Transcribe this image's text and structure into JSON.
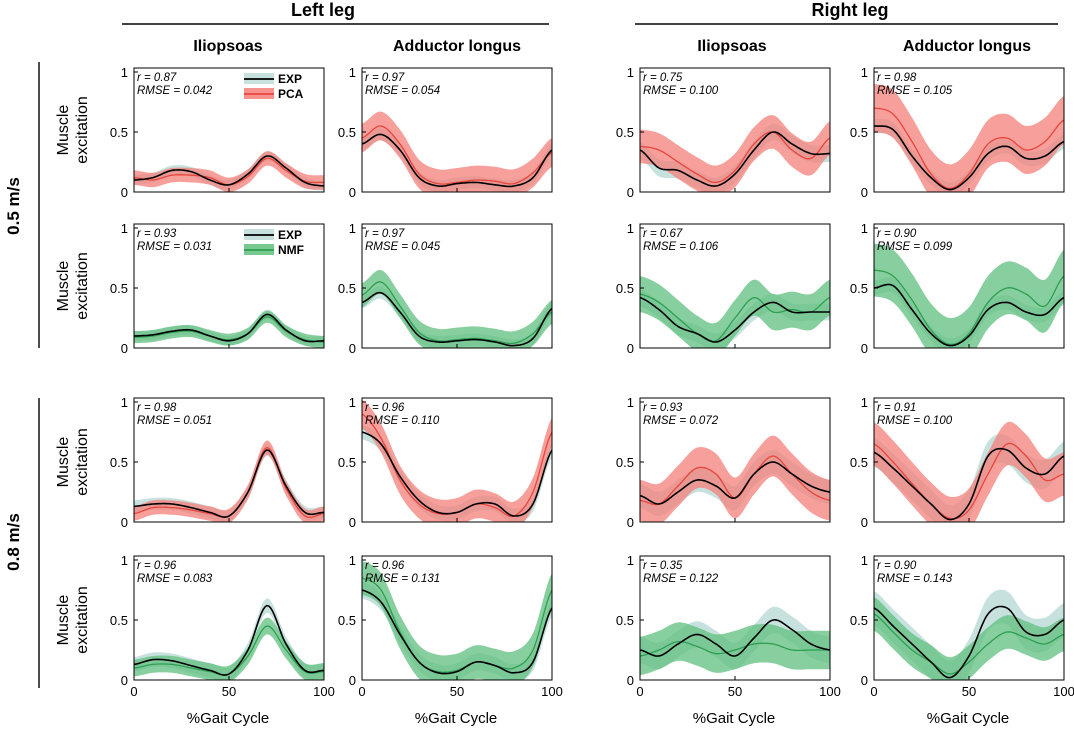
{
  "chart_data": {
    "type": "line",
    "groups": [
      "Left leg",
      "Right leg"
    ],
    "muscles": [
      "Iliopsoas",
      "Adductor longus"
    ],
    "speeds": [
      "0.5 m/s",
      "0.8 m/s"
    ],
    "ylabel": [
      "Muscle",
      "excitation"
    ],
    "xlabel": "%Gait Cycle",
    "xlim": [
      0,
      100
    ],
    "ylim": [
      0,
      1
    ],
    "xticks": [
      "0",
      "50",
      "100"
    ],
    "yticks": [
      "0",
      "0.5",
      "1"
    ],
    "legend_pca": [
      {
        "name": "EXP",
        "color": "#000000",
        "band": "#bcdcd8"
      },
      {
        "name": "PCA",
        "color": "#e8453c",
        "band": "#f47f7a"
      }
    ],
    "legend_nmf": [
      {
        "name": "EXP",
        "color": "#000000",
        "band": "#bcdcd8"
      },
      {
        "name": "NMF",
        "color": "#2e9e52",
        "band": "#5fbf7d"
      }
    ],
    "colors": {
      "exp_line": "#000000",
      "exp_band": "#bcdcd8",
      "pca_line": "#e8453c",
      "pca_band": "#f47f7a",
      "nmf_line": "#2e9e52",
      "nmf_band": "#5fbf7d"
    },
    "x": [
      0,
      10,
      20,
      30,
      40,
      50,
      60,
      70,
      80,
      90,
      100
    ],
    "panels": [
      {
        "row": 0,
        "col": 0,
        "method": "PCA",
        "r": "r = 0.87",
        "rmse": "RMSE = 0.042",
        "exp": [
          0.1,
          0.12,
          0.18,
          0.17,
          0.1,
          0.06,
          0.15,
          0.3,
          0.2,
          0.08,
          0.05
        ],
        "exp_sd": 0.04,
        "model": [
          0.12,
          0.1,
          0.14,
          0.14,
          0.12,
          0.06,
          0.13,
          0.28,
          0.18,
          0.09,
          0.08
        ],
        "model_sd": 0.06
      },
      {
        "row": 0,
        "col": 1,
        "method": "PCA",
        "r": "r = 0.97",
        "rmse": "RMSE = 0.054",
        "exp": [
          0.4,
          0.48,
          0.35,
          0.12,
          0.05,
          0.07,
          0.08,
          0.06,
          0.05,
          0.12,
          0.35
        ],
        "exp_sd": 0.05,
        "model": [
          0.45,
          0.55,
          0.4,
          0.15,
          0.07,
          0.08,
          0.1,
          0.09,
          0.07,
          0.16,
          0.33
        ],
        "model_sd": 0.12
      },
      {
        "row": 0,
        "col": 2,
        "method": "PCA",
        "r": "r = 0.75",
        "rmse": "RMSE = 0.100",
        "exp": [
          0.35,
          0.2,
          0.18,
          0.1,
          0.05,
          0.15,
          0.35,
          0.5,
          0.4,
          0.32,
          0.32
        ],
        "exp_sd": 0.07,
        "model": [
          0.38,
          0.35,
          0.25,
          0.15,
          0.08,
          0.18,
          0.4,
          0.5,
          0.35,
          0.28,
          0.45
        ],
        "model_sd": 0.14
      },
      {
        "row": 0,
        "col": 3,
        "method": "PCA",
        "r": "r = 0.98",
        "rmse": "RMSE = 0.105",
        "exp": [
          0.55,
          0.52,
          0.3,
          0.12,
          0.02,
          0.12,
          0.32,
          0.38,
          0.28,
          0.3,
          0.42
        ],
        "exp_sd": 0.06,
        "model": [
          0.7,
          0.65,
          0.42,
          0.15,
          0.03,
          0.15,
          0.4,
          0.45,
          0.35,
          0.42,
          0.6
        ],
        "model_sd": 0.2
      },
      {
        "row": 1,
        "col": 0,
        "method": "NMF",
        "r": "r = 0.93",
        "rmse": "RMSE = 0.031",
        "exp": [
          0.1,
          0.11,
          0.14,
          0.15,
          0.1,
          0.06,
          0.12,
          0.28,
          0.15,
          0.06,
          0.06
        ],
        "exp_sd": 0.04,
        "model": [
          0.09,
          0.1,
          0.13,
          0.14,
          0.1,
          0.07,
          0.12,
          0.26,
          0.14,
          0.07,
          0.05
        ],
        "model_sd": 0.05
      },
      {
        "row": 1,
        "col": 1,
        "method": "NMF",
        "r": "r = 0.97",
        "rmse": "RMSE = 0.045",
        "exp": [
          0.38,
          0.46,
          0.3,
          0.1,
          0.05,
          0.06,
          0.07,
          0.05,
          0.02,
          0.08,
          0.33
        ],
        "exp_sd": 0.05,
        "model": [
          0.44,
          0.55,
          0.35,
          0.13,
          0.06,
          0.07,
          0.08,
          0.06,
          0.04,
          0.12,
          0.3
        ],
        "model_sd": 0.1
      },
      {
        "row": 1,
        "col": 2,
        "method": "NMF",
        "r": "r = 0.67",
        "rmse": "RMSE = 0.106",
        "exp": [
          0.42,
          0.32,
          0.18,
          0.12,
          0.05,
          0.15,
          0.3,
          0.38,
          0.3,
          0.3,
          0.3
        ],
        "exp_sd": 0.07,
        "model": [
          0.45,
          0.38,
          0.25,
          0.12,
          0.06,
          0.25,
          0.42,
          0.3,
          0.32,
          0.3,
          0.42
        ],
        "model_sd": 0.15
      },
      {
        "row": 1,
        "col": 3,
        "method": "NMF",
        "r": "r = 0.90",
        "rmse": "RMSE = 0.099",
        "exp": [
          0.5,
          0.52,
          0.32,
          0.12,
          0.02,
          0.1,
          0.32,
          0.38,
          0.3,
          0.28,
          0.42
        ],
        "exp_sd": 0.06,
        "model": [
          0.65,
          0.6,
          0.4,
          0.15,
          0.03,
          0.12,
          0.38,
          0.5,
          0.45,
          0.35,
          0.6
        ],
        "model_sd": 0.22
      },
      {
        "row": 2,
        "col": 0,
        "method": "PCA",
        "r": "r = 0.98",
        "rmse": "RMSE = 0.051",
        "exp": [
          0.13,
          0.15,
          0.15,
          0.12,
          0.08,
          0.05,
          0.25,
          0.6,
          0.3,
          0.08,
          0.08
        ],
        "exp_sd": 0.05,
        "model": [
          0.07,
          0.12,
          0.12,
          0.1,
          0.07,
          0.05,
          0.25,
          0.62,
          0.28,
          0.05,
          0.07
        ],
        "model_sd": 0.06
      },
      {
        "row": 2,
        "col": 1,
        "method": "PCA",
        "r": "r = 0.96",
        "rmse": "RMSE = 0.110",
        "exp": [
          0.75,
          0.65,
          0.38,
          0.18,
          0.08,
          0.08,
          0.15,
          0.15,
          0.05,
          0.15,
          0.6
        ],
        "exp_sd": 0.06,
        "model": [
          0.9,
          0.7,
          0.35,
          0.15,
          0.07,
          0.08,
          0.15,
          0.12,
          0.05,
          0.25,
          0.75
        ],
        "model_sd": 0.12
      },
      {
        "row": 2,
        "col": 2,
        "method": "PCA",
        "r": "r = 0.93",
        "rmse": "RMSE = 0.072",
        "exp": [
          0.22,
          0.15,
          0.25,
          0.35,
          0.3,
          0.2,
          0.4,
          0.5,
          0.4,
          0.3,
          0.25
        ],
        "exp_sd": 0.1,
        "model": [
          0.18,
          0.15,
          0.3,
          0.45,
          0.4,
          0.2,
          0.4,
          0.55,
          0.4,
          0.25,
          0.18
        ],
        "model_sd": 0.17
      },
      {
        "row": 2,
        "col": 3,
        "method": "PCA",
        "r": "r = 0.91",
        "rmse": "RMSE = 0.100",
        "exp": [
          0.58,
          0.45,
          0.3,
          0.15,
          0.02,
          0.15,
          0.55,
          0.6,
          0.45,
          0.4,
          0.55
        ],
        "exp_sd": 0.12,
        "model": [
          0.65,
          0.5,
          0.32,
          0.15,
          0.03,
          0.1,
          0.4,
          0.65,
          0.55,
          0.35,
          0.4
        ],
        "model_sd": 0.18
      },
      {
        "row": 3,
        "col": 0,
        "method": "NMF",
        "r": "r = 0.96",
        "rmse": "RMSE = 0.083",
        "exp": [
          0.13,
          0.17,
          0.16,
          0.12,
          0.08,
          0.05,
          0.25,
          0.62,
          0.3,
          0.08,
          0.08
        ],
        "exp_sd": 0.06,
        "model": [
          0.1,
          0.13,
          0.13,
          0.1,
          0.07,
          0.05,
          0.2,
          0.45,
          0.25,
          0.07,
          0.07
        ],
        "model_sd": 0.07
      },
      {
        "row": 3,
        "col": 1,
        "method": "NMF",
        "r": "r = 0.96",
        "rmse": "RMSE = 0.131",
        "exp": [
          0.75,
          0.65,
          0.38,
          0.15,
          0.06,
          0.07,
          0.15,
          0.12,
          0.06,
          0.15,
          0.6
        ],
        "exp_sd": 0.07,
        "model": [
          0.85,
          0.75,
          0.4,
          0.15,
          0.07,
          0.08,
          0.15,
          0.12,
          0.1,
          0.25,
          0.75
        ],
        "model_sd": 0.14
      },
      {
        "row": 3,
        "col": 2,
        "method": "NMF",
        "r": "r = 0.35",
        "rmse": "RMSE = 0.122",
        "exp": [
          0.25,
          0.2,
          0.3,
          0.38,
          0.3,
          0.2,
          0.35,
          0.5,
          0.42,
          0.3,
          0.25
        ],
        "exp_sd": 0.11,
        "model": [
          0.2,
          0.25,
          0.32,
          0.28,
          0.22,
          0.25,
          0.3,
          0.3,
          0.25,
          0.25,
          0.25
        ],
        "model_sd": 0.16
      },
      {
        "row": 3,
        "col": 3,
        "method": "NMF",
        "r": "r = 0.90",
        "rmse": "RMSE = 0.143",
        "exp": [
          0.6,
          0.45,
          0.3,
          0.15,
          0.02,
          0.2,
          0.55,
          0.6,
          0.4,
          0.38,
          0.5
        ],
        "exp_sd": 0.14,
        "model": [
          0.55,
          0.4,
          0.25,
          0.15,
          0.05,
          0.15,
          0.3,
          0.4,
          0.35,
          0.3,
          0.38
        ],
        "model_sd": 0.14
      }
    ]
  }
}
